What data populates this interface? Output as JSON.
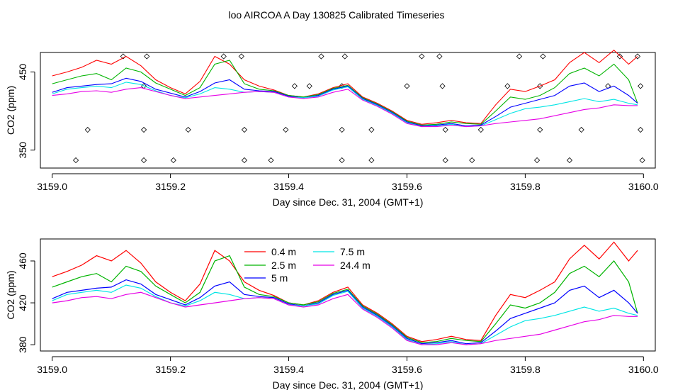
{
  "title": "loo AIRCOA A  Day 130825  Calibrated Timeseries",
  "chart_data": [
    {
      "type": "line",
      "xlabel": "Day since Dec. 31, 2004 (GMT+1)",
      "ylabel": "CO2 (ppm)",
      "xlim": [
        3158.98,
        3160.02
      ],
      "ylim": [
        327,
        475
      ],
      "xticks": [
        3159.0,
        3159.2,
        3159.4,
        3159.6,
        3159.8,
        3160.0
      ],
      "xtick_labels": [
        "3159.0",
        "3159.2",
        "3159.4",
        "3159.6",
        "3159.8",
        "3160.0"
      ],
      "yticks": [
        350,
        450
      ],
      "ytick_labels": [
        "350",
        "450"
      ],
      "markers": [
        [
          3159.12,
          470
        ],
        [
          3159.16,
          470
        ],
        [
          3159.29,
          470
        ],
        [
          3159.32,
          470
        ],
        [
          3159.455,
          470
        ],
        [
          3159.495,
          470
        ],
        [
          3159.625,
          470
        ],
        [
          3159.655,
          470
        ],
        [
          3159.79,
          470
        ],
        [
          3159.83,
          470
        ],
        [
          3159.96,
          470
        ],
        [
          3159.99,
          470
        ],
        [
          3159.155,
          432
        ],
        [
          3159.41,
          432
        ],
        [
          3159.435,
          432
        ],
        [
          3159.49,
          432
        ],
        [
          3159.6,
          432
        ],
        [
          3159.66,
          432
        ],
        [
          3159.77,
          432
        ],
        [
          3159.825,
          432
        ],
        [
          3159.94,
          432
        ],
        [
          3159.995,
          432
        ],
        [
          3159.06,
          376
        ],
        [
          3159.155,
          376
        ],
        [
          3159.23,
          376
        ],
        [
          3159.325,
          376
        ],
        [
          3159.395,
          376
        ],
        [
          3159.49,
          376
        ],
        [
          3159.54,
          376
        ],
        [
          3159.665,
          376
        ],
        [
          3159.725,
          376
        ],
        [
          3159.825,
          376
        ],
        [
          3159.895,
          376
        ],
        [
          3159.995,
          376
        ],
        [
          3159.04,
          337
        ],
        [
          3159.155,
          337
        ],
        [
          3159.205,
          337
        ],
        [
          3159.325,
          337
        ],
        [
          3159.37,
          337
        ],
        [
          3159.49,
          337
        ],
        [
          3159.54,
          337
        ],
        [
          3159.665,
          337
        ],
        [
          3159.71,
          337
        ],
        [
          3159.82,
          337
        ],
        [
          3159.875,
          337
        ],
        [
          3159.998,
          337
        ]
      ]
    },
    {
      "type": "line",
      "xlabel": "Day since Dec. 31, 2004 (GMT+1)",
      "ylabel": "CO2 (ppm)",
      "xlim": [
        3158.98,
        3160.02
      ],
      "ylim": [
        374,
        481
      ],
      "xticks": [
        3159.0,
        3159.2,
        3159.4,
        3159.6,
        3159.8,
        3160.0
      ],
      "xtick_labels": [
        "3159.0",
        "3159.2",
        "3159.4",
        "3159.6",
        "3159.8",
        "3160.0"
      ],
      "yticks": [
        380,
        420,
        460
      ],
      "ytick_labels": [
        "380",
        "420",
        "460"
      ],
      "legend": "top-center",
      "series": [
        {
          "name": "0.4 m",
          "color": "#ff0000"
        },
        {
          "name": "2.5 m",
          "color": "#00b400"
        },
        {
          "name": "5 m",
          "color": "#0000ff"
        },
        {
          "name": "7.5 m",
          "color": "#00e5e5"
        },
        {
          "name": "24.4 m",
          "color": "#e600e6"
        }
      ],
      "x": [
        3159.0,
        3159.025,
        3159.05,
        3159.075,
        3159.1,
        3159.125,
        3159.15,
        3159.175,
        3159.2,
        3159.225,
        3159.25,
        3159.275,
        3159.3,
        3159.325,
        3159.35,
        3159.375,
        3159.4,
        3159.425,
        3159.45,
        3159.475,
        3159.5,
        3159.525,
        3159.55,
        3159.575,
        3159.6,
        3159.625,
        3159.65,
        3159.675,
        3159.7,
        3159.725,
        3159.75,
        3159.775,
        3159.8,
        3159.825,
        3159.85,
        3159.875,
        3159.9,
        3159.925,
        3159.95,
        3159.975,
        3159.99
      ],
      "values": {
        "0.4 m": [
          445,
          450,
          456,
          465,
          460,
          470,
          458,
          440,
          430,
          422,
          438,
          470,
          460,
          440,
          432,
          427,
          420,
          418,
          422,
          430,
          435,
          418,
          410,
          400,
          388,
          383,
          385,
          388,
          385,
          384,
          408,
          428,
          425,
          432,
          440,
          462,
          475,
          462,
          478,
          460,
          470
        ],
        "2.5 m": [
          435,
          440,
          445,
          448,
          440,
          455,
          450,
          436,
          428,
          420,
          430,
          460,
          465,
          435,
          428,
          426,
          420,
          418,
          421,
          429,
          433,
          417,
          409,
          399,
          387,
          382,
          383,
          386,
          384,
          383,
          400,
          418,
          415,
          420,
          430,
          448,
          455,
          445,
          460,
          440,
          410
        ],
        "5 m": [
          424,
          430,
          432,
          434,
          435,
          442,
          438,
          428,
          423,
          418,
          425,
          436,
          440,
          428,
          426,
          425,
          419,
          417,
          420,
          428,
          432,
          416,
          408,
          398,
          386,
          381,
          382,
          384,
          381,
          382,
          393,
          405,
          410,
          415,
          420,
          432,
          436,
          425,
          432,
          420,
          410
        ],
        "7.5 m": [
          422,
          428,
          430,
          432,
          430,
          437,
          434,
          426,
          420,
          417,
          422,
          430,
          428,
          424,
          425,
          424,
          418,
          417,
          419,
          427,
          431,
          415,
          407,
          397,
          385,
          380,
          381,
          383,
          380,
          381,
          389,
          397,
          403,
          405,
          408,
          412,
          416,
          412,
          415,
          410,
          408
        ],
        "24.4 m": [
          420,
          422,
          425,
          426,
          424,
          428,
          430,
          425,
          420,
          416,
          418,
          420,
          422,
          424,
          425,
          424,
          418,
          416,
          418,
          424,
          428,
          414,
          406,
          396,
          384,
          380,
          380,
          382,
          380,
          381,
          384,
          386,
          388,
          390,
          394,
          398,
          402,
          404,
          408,
          407,
          407
        ]
      }
    }
  ]
}
